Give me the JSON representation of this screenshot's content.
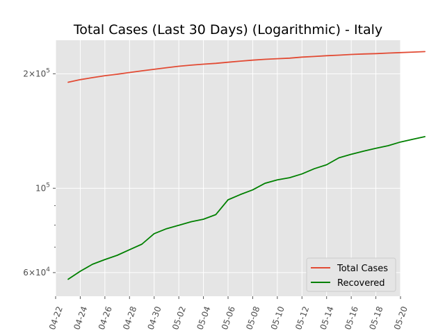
{
  "chart_data": {
    "type": "line",
    "title": "Total Cases (Last 30 Days) (Logarithmic) - Italy",
    "xlabel": "",
    "ylabel": "",
    "yscale": "log",
    "grid": true,
    "legend_position": "lower-right",
    "x_ticks": [
      "04-22",
      "04-24",
      "04-26",
      "04-28",
      "04-30",
      "05-02",
      "05-04",
      "05-06",
      "05-08",
      "05-10",
      "05-12",
      "05-14",
      "05-16",
      "05-18",
      "05-20"
    ],
    "y_ticks": [
      {
        "value": 60000,
        "mantissa": "6",
        "exponent": "4"
      },
      {
        "value": 100000,
        "mantissa": "",
        "exponent": "5"
      },
      {
        "value": 200000,
        "mantissa": "2",
        "exponent": "5"
      }
    ],
    "x": [
      "04-23",
      "04-24",
      "04-25",
      "04-26",
      "04-27",
      "04-28",
      "04-29",
      "04-30",
      "05-01",
      "05-02",
      "05-03",
      "05-04",
      "05-05",
      "05-06",
      "05-07",
      "05-08",
      "05-09",
      "05-10",
      "05-11",
      "05-12",
      "05-13",
      "05-14",
      "05-15",
      "05-16",
      "05-17",
      "05-18",
      "05-19",
      "05-20",
      "05-21",
      "05-22"
    ],
    "series": [
      {
        "name": "Total Cases",
        "color": "#e24a33",
        "values": [
          189973,
          192994,
          195351,
          197675,
          199414,
          201505,
          203591,
          205463,
          207428,
          209328,
          210717,
          211938,
          213013,
          214457,
          215858,
          217185,
          218268,
          219070,
          219814,
          221216,
          222104,
          223096,
          223885,
          224760,
          225435,
          225886,
          226699,
          227364,
          228006,
          228658
        ]
      },
      {
        "name": "Recovered",
        "color": "#008000",
        "values": [
          57576,
          60498,
          63120,
          64928,
          66624,
          68941,
          71252,
          75945,
          78249,
          79914,
          81654,
          82879,
          85231,
          93245,
          96276,
          99023,
          103031,
          105186,
          106587,
          109039,
          112541,
          115288,
          120205,
          122810,
          125176,
          127326,
          129401,
          132282,
          134560,
          136720
        ]
      }
    ]
  }
}
